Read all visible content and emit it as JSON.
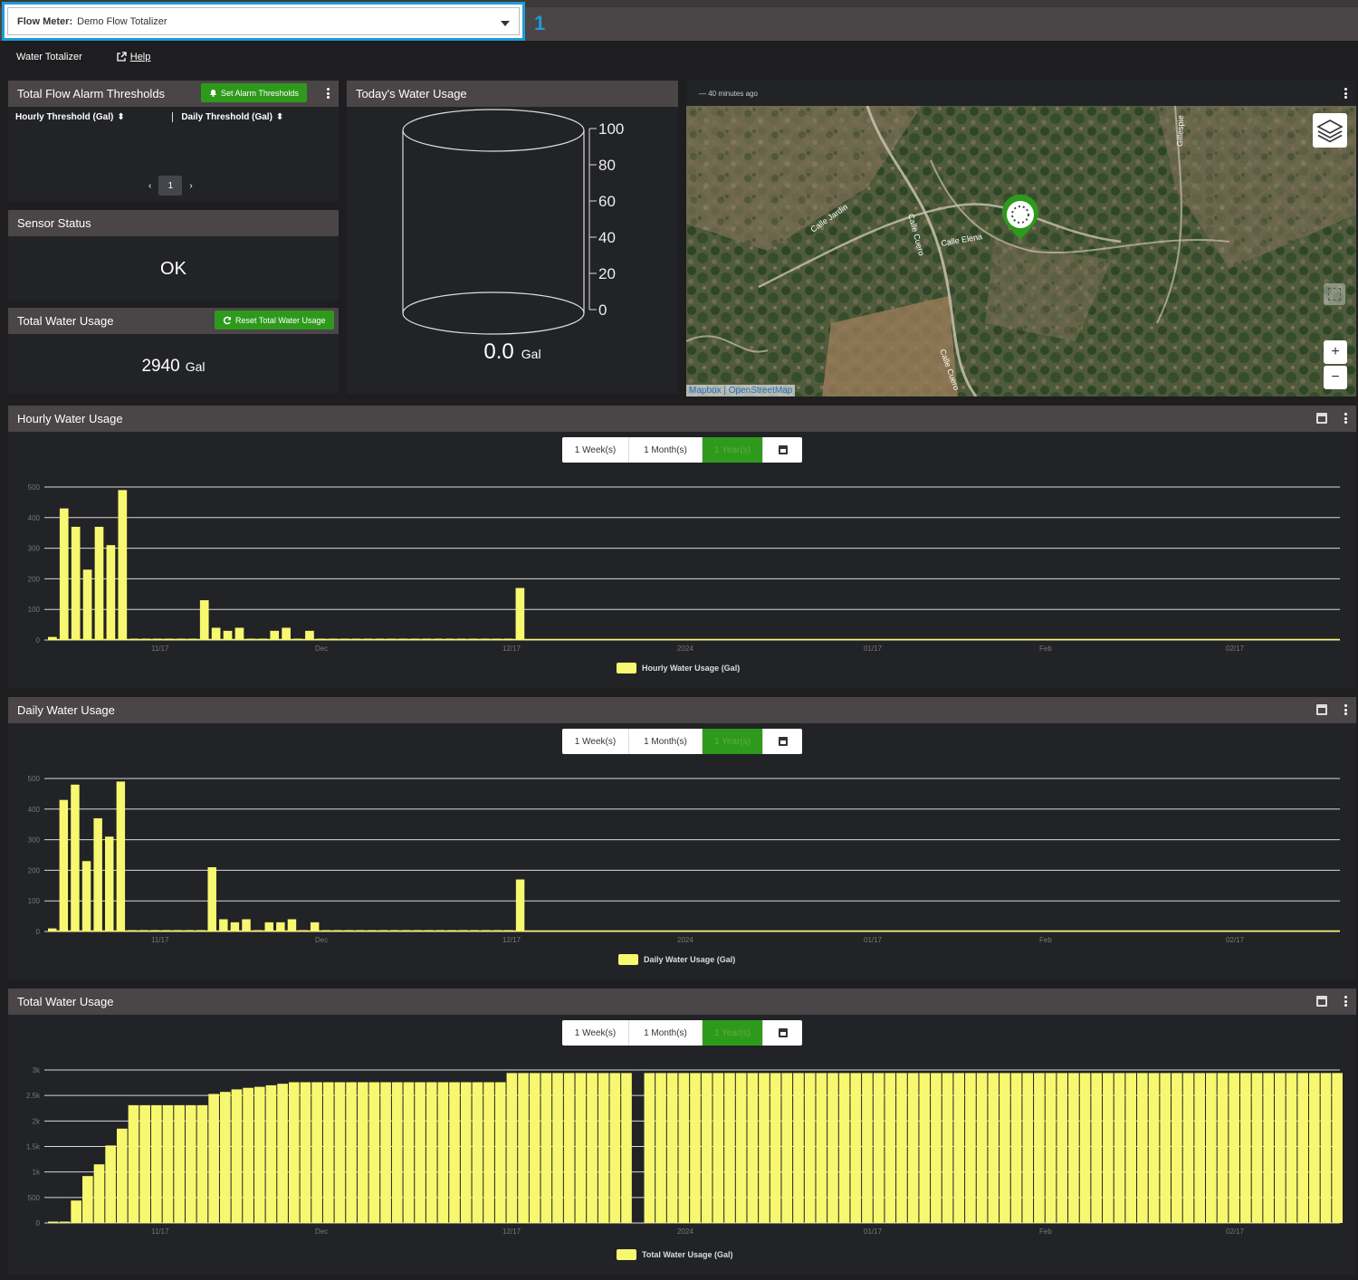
{
  "selector": {
    "label": "Flow Meter:",
    "value": "Demo Flow Totalizer"
  },
  "callout": "1",
  "subbar": {
    "title": "Water Totalizer",
    "help": "Help"
  },
  "alarm": {
    "title": "Total Flow Alarm Thresholds",
    "button": "Set Alarm Thresholds",
    "col_hourly": "Hourly Threshold (Gal)",
    "col_daily": "Daily Threshold (Gal)",
    "page": "1"
  },
  "sensor": {
    "title": "Sensor Status",
    "value": "OK"
  },
  "total_usage_card": {
    "title": "Total Water Usage",
    "button": "Reset Total Water Usage",
    "value": "2940",
    "unit": "Gal"
  },
  "today": {
    "title": "Today's Water Usage",
    "value": "0.0",
    "unit": "Gal",
    "ticks": [
      "100",
      "80",
      "60",
      "40",
      "20",
      "0"
    ]
  },
  "map": {
    "updated": "— 40 minutes ago",
    "labels": [
      "Calle Jardin",
      "Calle Cuero",
      "Calle Elena",
      "Gillespie",
      "Calle Cuero"
    ],
    "attribution_a": "Mapbox",
    "attribution_b": "OpenStreetMap",
    "zoom_in": "+",
    "zoom_out": "−"
  },
  "ranges": {
    "week": "1 Week(s)",
    "month": "1 Month(s)",
    "year": "1 Year(s)"
  },
  "chart_data": [
    {
      "type": "bar",
      "title": "Hourly Water Usage",
      "series_name": "Hourly Water Usage (Gal)",
      "ylim": [
        0,
        500
      ],
      "yticks": [
        "0",
        "100",
        "200",
        "300",
        "400",
        "500"
      ],
      "xticks": [
        "11/17",
        "Dec",
        "12/17",
        "2024",
        "01/17",
        "Feb",
        "02/17"
      ],
      "values": [
        10,
        430,
        370,
        230,
        370,
        310,
        490,
        0,
        0,
        0,
        0,
        0,
        0,
        130,
        40,
        30,
        40,
        0,
        0,
        30,
        40,
        0,
        30,
        0,
        0,
        0,
        0,
        0,
        0,
        0,
        0,
        0,
        0,
        0,
        0,
        0,
        0,
        0,
        0,
        0,
        170
      ]
    },
    {
      "type": "bar",
      "title": "Daily Water Usage",
      "series_name": "Daily Water Usage (Gal)",
      "ylim": [
        0,
        500
      ],
      "yticks": [
        "0",
        "100",
        "200",
        "300",
        "400",
        "500"
      ],
      "xticks": [
        "11/17",
        "Dec",
        "12/17",
        "2024",
        "01/17",
        "Feb",
        "02/17"
      ],
      "values": [
        10,
        430,
        480,
        230,
        370,
        310,
        490,
        0,
        0,
        0,
        0,
        0,
        0,
        0,
        210,
        40,
        30,
        40,
        0,
        30,
        30,
        40,
        0,
        30,
        0,
        0,
        0,
        0,
        0,
        0,
        0,
        0,
        0,
        0,
        0,
        0,
        0,
        0,
        0,
        0,
        0,
        170
      ]
    },
    {
      "type": "bar",
      "title": "Total Water Usage",
      "series_name": "Total Water Usage (Gal)",
      "ylim": [
        0,
        3000
      ],
      "yticks": [
        "0",
        "500",
        "1k",
        "1.5k",
        "2k",
        "2.5k",
        "3k"
      ],
      "xticks": [
        "11/17",
        "Dec",
        "12/17",
        "2024",
        "01/17",
        "Feb",
        "02/17"
      ],
      "values": [
        10,
        10,
        440,
        920,
        1150,
        1520,
        1850,
        2310,
        2310,
        2310,
        2310,
        2310,
        2310,
        2310,
        2530,
        2570,
        2620,
        2650,
        2670,
        2700,
        2730,
        2760,
        2760,
        2760,
        2760,
        2760,
        2760,
        2760,
        2760,
        2760,
        2760,
        2760,
        2760,
        2760,
        2760,
        2760,
        2760,
        2760,
        2760,
        2760,
        2940,
        2940,
        2940,
        2940,
        2940,
        2940,
        2940,
        2940,
        2940,
        2940,
        2940,
        null,
        2940,
        2940,
        2940,
        2940,
        2940,
        2940,
        2940,
        2940,
        2940,
        2940,
        2940,
        2940,
        2940,
        2940,
        2940,
        2940,
        2940,
        2940,
        2940,
        2940,
        2940,
        2940,
        2940,
        2940,
        2940,
        2940,
        2940,
        2940,
        2940,
        2940,
        2940,
        2940,
        2940,
        2940,
        2940,
        2940,
        2940,
        2940,
        2940,
        2940,
        2940,
        2940,
        2940,
        2940,
        2940,
        2940,
        2940,
        2940,
        2940,
        2940,
        2940,
        2940,
        2940,
        2940,
        2940,
        2940,
        2940,
        2940,
        2940,
        2940,
        2940
      ]
    }
  ],
  "colors": {
    "accent": "#1e9bd7",
    "green": "#2e9a1c",
    "bar": "#f8f870",
    "header": "#4a4546"
  }
}
